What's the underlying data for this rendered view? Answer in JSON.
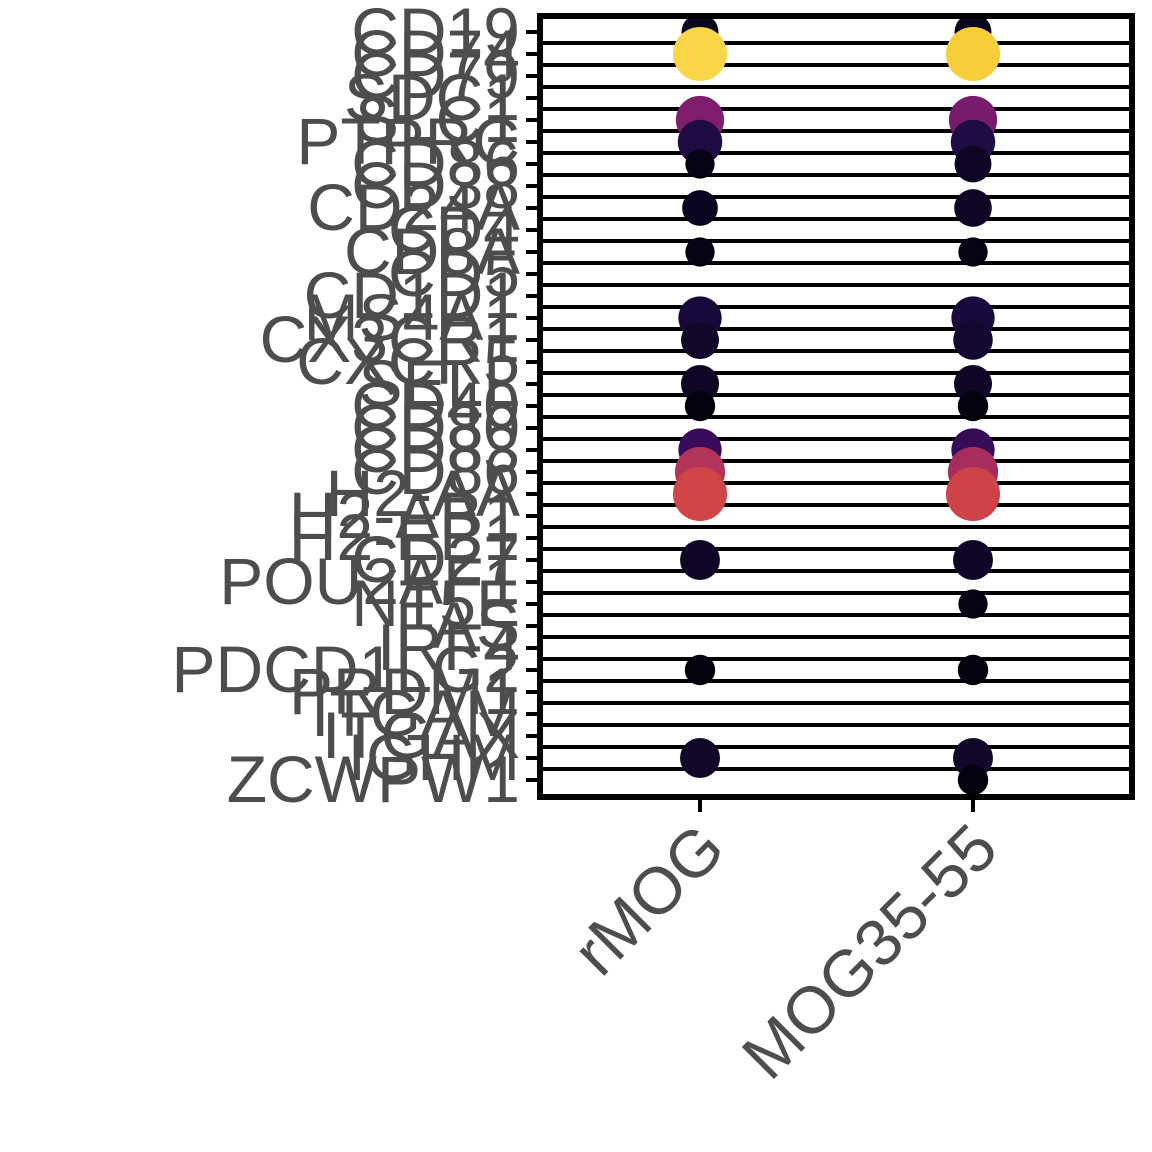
{
  "chart_data": {
    "type": "dot",
    "title": "",
    "xlabel": "",
    "ylabel": "",
    "categories": [
      "rMOG",
      "MOG35-55"
    ],
    "genes": [
      "CD19",
      "CD74",
      "CD79",
      "SDC1",
      "SLC1",
      "PTPRC",
      "CD86",
      "CD38",
      "CD24A",
      "CD4",
      "CD8A",
      "CD5",
      "CD1D1",
      "MS4A1",
      "CX3CR1",
      "CXCR5",
      "SELL",
      "CD40",
      "CD80",
      "CD83",
      "CD86",
      "H2-AA",
      "H2-AB1",
      "H2-EB1",
      "CD27",
      "POU2AF1",
      "NT5E",
      "FAS",
      "IRF4",
      "PDCD1LG2",
      "PRDM1",
      "ITGAM",
      "ITGAX",
      "IGHM",
      "ZCWPW1"
    ],
    "series": [
      {
        "name": "rMOG",
        "size": [
          0.55,
          1.0,
          0,
          0,
          0.85,
          0.75,
          0.35,
          0,
          0.52,
          0,
          0.35,
          0,
          0,
          0.72,
          0.58,
          0,
          0.58,
          0.38,
          0,
          0.72,
          0.9,
          1.0,
          0,
          0,
          0.63,
          0,
          0,
          0,
          0,
          0.38,
          0,
          0,
          0,
          0.63,
          0
        ],
        "color": [
          0.05,
          0.9,
          0,
          0,
          0.35,
          0.12,
          0.03,
          0,
          0.05,
          0,
          0.03,
          0,
          0,
          0.1,
          0.07,
          0,
          0.06,
          0.02,
          0,
          0.18,
          0.48,
          0.56,
          0,
          0,
          0.06,
          0,
          0,
          0,
          0,
          0.02,
          0,
          0,
          0,
          0.07,
          0
        ]
      },
      {
        "name": "MOG35-55",
        "size": [
          0.55,
          1.0,
          0,
          0,
          0.85,
          0.75,
          0.55,
          0,
          0.57,
          0,
          0.35,
          0,
          0,
          0.72,
          0.62,
          0,
          0.58,
          0.38,
          0,
          0.72,
          0.9,
          1.0,
          0,
          0,
          0.63,
          0,
          0.35,
          0,
          0,
          0.38,
          0,
          0,
          0,
          0.63,
          0.38
        ],
        "color": [
          0.05,
          0.88,
          0,
          0,
          0.33,
          0.12,
          0.06,
          0,
          0.06,
          0,
          0.03,
          0,
          0,
          0.1,
          0.08,
          0,
          0.06,
          0.02,
          0,
          0.17,
          0.45,
          0.55,
          0,
          0,
          0.06,
          0,
          0.03,
          0,
          0,
          0.02,
          0,
          0,
          0,
          0.07,
          0.02
        ]
      }
    ],
    "size_range": [
      0,
      1
    ],
    "color_range": [
      0,
      1
    ],
    "colormap": [
      "#000004",
      "#1b0c41",
      "#4a0c6b",
      "#781c6d",
      "#a52c60",
      "#cf4446",
      "#ed6925",
      "#fb9b06",
      "#f7d13d",
      "#fcffa4"
    ],
    "grid": true,
    "legend": "none"
  }
}
